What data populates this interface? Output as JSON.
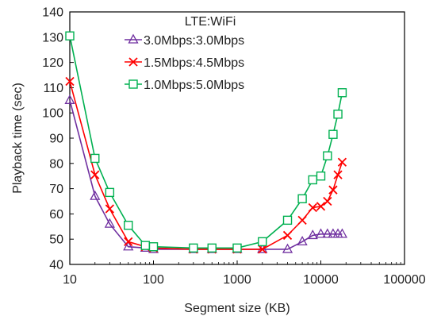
{
  "chart_data": {
    "type": "line",
    "xlabel": "Segment size (KB)",
    "ylabel": "Playback time (sec)",
    "xscale": "log",
    "xlim": [
      10,
      100000
    ],
    "ylim": [
      40,
      140
    ],
    "x_ticks": [
      10,
      100,
      1000,
      10000,
      100000
    ],
    "x_tick_labels": [
      "10",
      "100",
      "1000",
      "10000",
      "100000"
    ],
    "y_ticks": [
      40,
      50,
      60,
      70,
      80,
      90,
      100,
      110,
      120,
      130,
      140
    ],
    "y_tick_labels": [
      "40",
      "50",
      "60",
      "70",
      "80",
      "90",
      "100",
      "110",
      "120",
      "130",
      "140"
    ],
    "grid": false,
    "legend_title": "LTE:WiFi",
    "legend_position": "top-center",
    "series": [
      {
        "name": "3.0Mbps:3.0Mbps",
        "color": "#7030a0",
        "marker": "triangle",
        "x": [
          10,
          20,
          30,
          50,
          80,
          100,
          300,
          500,
          1000,
          2000,
          4000,
          6000,
          8000,
          10000,
          12000,
          14000,
          16000,
          18000
        ],
        "y": [
          105,
          67,
          56,
          47,
          46.5,
          46,
          46,
          46,
          46,
          46,
          46,
          49,
          51.5,
          52,
          52,
          52,
          52,
          52
        ]
      },
      {
        "name": "1.5Mbps:4.5Mbps",
        "color": "#ff0000",
        "marker": "x",
        "x": [
          10,
          20,
          30,
          50,
          80,
          100,
          300,
          500,
          1000,
          2000,
          4000,
          6000,
          8000,
          10000,
          12000,
          14000,
          16000,
          18000
        ],
        "y": [
          112.5,
          75.5,
          62,
          49,
          47,
          46.5,
          46,
          46,
          46,
          46,
          51.5,
          57.5,
          62.5,
          63,
          65,
          69.5,
          75.5,
          80.5
        ]
      },
      {
        "name": "1.0Mbps:5.0Mbps",
        "color": "#00b050",
        "marker": "square",
        "x": [
          10,
          20,
          30,
          50,
          80,
          100,
          300,
          500,
          1000,
          2000,
          4000,
          6000,
          8000,
          10000,
          12000,
          14000,
          16000,
          18000
        ],
        "y": [
          130.5,
          82,
          68.5,
          55.5,
          47.5,
          47,
          46.5,
          46.5,
          46.5,
          49,
          57.5,
          66,
          73.5,
          75,
          83,
          91.5,
          99.5,
          108
        ]
      }
    ]
  }
}
